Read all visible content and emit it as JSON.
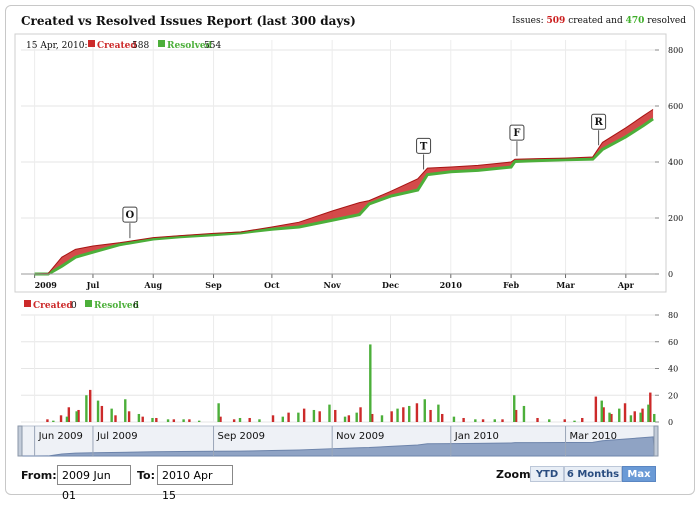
{
  "header": {
    "title": "Created vs Resolved Issues Report (last 300 days)",
    "summary_prefix": "Issues:",
    "created_total": "509",
    "summary_mid": "created and",
    "resolved_total": "470",
    "summary_suffix": "resolved"
  },
  "legend_top": {
    "date": "15 Apr, 2010:",
    "created_label": "Created",
    "created_value": "588",
    "resolved_label": "Resolved",
    "resolved_value": "554"
  },
  "legend_bottom": {
    "created_label": "Created",
    "created_value": "0",
    "resolved_label": "Resolved",
    "resolved_value": "6"
  },
  "colors": {
    "created": "#cc2a2a",
    "resolved": "#4caf3a"
  },
  "chart_data": [
    {
      "type": "area",
      "title": "",
      "x_ticks": [
        "2009",
        "Jul",
        "Aug",
        "Sep",
        "Oct",
        "Nov",
        "Dec",
        "2010",
        "Feb",
        "Mar",
        "Apr"
      ],
      "x_tick_dates": [
        "2009-06-01",
        "2009-07-01",
        "2009-08-01",
        "2009-09-01",
        "2009-10-01",
        "2009-11-01",
        "2009-12-01",
        "2010-01-01",
        "2010-02-01",
        "2010-03-01",
        "2010-04-01"
      ],
      "y_ticks": [
        0,
        200,
        400,
        600,
        800
      ],
      "ylim": [
        0,
        800
      ],
      "grid": true,
      "series": [
        {
          "name": "Created",
          "points": [
            [
              "2009-06-01",
              0
            ],
            [
              "2009-06-08",
              2
            ],
            [
              "2009-06-15",
              60
            ],
            [
              "2009-06-22",
              88
            ],
            [
              "2009-07-01",
              100
            ],
            [
              "2009-07-15",
              112
            ],
            [
              "2009-08-01",
              130
            ],
            [
              "2009-08-15",
              137
            ],
            [
              "2009-09-01",
              145
            ],
            [
              "2009-09-15",
              150
            ],
            [
              "2009-10-01",
              168
            ],
            [
              "2009-10-15",
              185
            ],
            [
              "2009-11-01",
              225
            ],
            [
              "2009-11-15",
              255
            ],
            [
              "2009-11-20",
              262
            ],
            [
              "2009-12-01",
              295
            ],
            [
              "2009-12-15",
              340
            ],
            [
              "2009-12-20",
              378
            ],
            [
              "2010-01-01",
              382
            ],
            [
              "2010-01-15",
              388
            ],
            [
              "2010-02-01",
              400
            ],
            [
              "2010-02-03",
              410
            ],
            [
              "2010-02-15",
              412
            ],
            [
              "2010-03-01",
              414
            ],
            [
              "2010-03-15",
              418
            ],
            [
              "2010-03-20",
              470
            ],
            [
              "2010-04-01",
              522
            ],
            [
              "2010-04-10",
              565
            ],
            [
              "2010-04-15",
              588
            ]
          ]
        },
        {
          "name": "Resolved",
          "points": [
            [
              "2009-06-01",
              0
            ],
            [
              "2009-06-08",
              0
            ],
            [
              "2009-06-15",
              28
            ],
            [
              "2009-06-22",
              60
            ],
            [
              "2009-07-01",
              78
            ],
            [
              "2009-07-15",
              105
            ],
            [
              "2009-08-01",
              125
            ],
            [
              "2009-08-15",
              133
            ],
            [
              "2009-09-01",
              140
            ],
            [
              "2009-09-15",
              147
            ],
            [
              "2009-10-01",
              160
            ],
            [
              "2009-10-15",
              168
            ],
            [
              "2009-11-01",
              192
            ],
            [
              "2009-11-15",
              212
            ],
            [
              "2009-11-20",
              250
            ],
            [
              "2009-12-01",
              278
            ],
            [
              "2009-12-15",
              300
            ],
            [
              "2009-12-20",
              355
            ],
            [
              "2010-01-01",
              365
            ],
            [
              "2010-01-15",
              370
            ],
            [
              "2010-02-01",
              382
            ],
            [
              "2010-02-03",
              402
            ],
            [
              "2010-02-15",
              405
            ],
            [
              "2010-03-01",
              408
            ],
            [
              "2010-03-15",
              410
            ],
            [
              "2010-03-20",
              445
            ],
            [
              "2010-04-01",
              490
            ],
            [
              "2010-04-10",
              530
            ],
            [
              "2010-04-15",
              554
            ]
          ]
        }
      ],
      "annotations": [
        {
          "label": "O",
          "date": "2009-07-20"
        },
        {
          "label": "T",
          "date": "2009-12-18"
        },
        {
          "label": "F",
          "date": "2010-02-04"
        },
        {
          "label": "R",
          "date": "2010-03-18"
        }
      ]
    },
    {
      "type": "bar",
      "title": "",
      "y_ticks": [
        0,
        20,
        40,
        60,
        80
      ],
      "ylim": [
        0,
        80
      ],
      "grid": true,
      "series": [
        {
          "name": "Created",
          "points": [
            [
              "2009-06-08",
              2
            ],
            [
              "2009-06-15",
              5
            ],
            [
              "2009-06-19",
              11
            ],
            [
              "2009-06-24",
              9
            ],
            [
              "2009-06-30",
              24
            ],
            [
              "2009-07-06",
              12
            ],
            [
              "2009-07-13",
              5
            ],
            [
              "2009-07-20",
              8
            ],
            [
              "2009-07-27",
              4
            ],
            [
              "2009-08-03",
              3
            ],
            [
              "2009-08-12",
              2
            ],
            [
              "2009-08-20",
              2
            ],
            [
              "2009-09-05",
              4
            ],
            [
              "2009-09-12",
              2
            ],
            [
              "2009-09-20",
              3
            ],
            [
              "2009-10-02",
              5
            ],
            [
              "2009-10-10",
              7
            ],
            [
              "2009-10-18",
              10
            ],
            [
              "2009-10-26",
              8
            ],
            [
              "2009-11-03",
              9
            ],
            [
              "2009-11-10",
              5
            ],
            [
              "2009-11-16",
              11
            ],
            [
              "2009-11-22",
              6
            ],
            [
              "2009-12-02",
              8
            ],
            [
              "2009-12-08",
              11
            ],
            [
              "2009-12-15",
              14
            ],
            [
              "2009-12-22",
              9
            ],
            [
              "2009-12-28",
              6
            ],
            [
              "2010-01-08",
              3
            ],
            [
              "2010-01-18",
              2
            ],
            [
              "2010-01-28",
              2
            ],
            [
              "2010-02-04",
              9
            ],
            [
              "2010-02-15",
              3
            ],
            [
              "2010-03-01",
              2
            ],
            [
              "2010-03-10",
              3
            ],
            [
              "2010-03-17",
              19
            ],
            [
              "2010-03-21",
              11
            ],
            [
              "2010-03-25",
              6
            ],
            [
              "2010-04-01",
              14
            ],
            [
              "2010-04-06",
              8
            ],
            [
              "2010-04-10",
              10
            ],
            [
              "2010-04-14",
              22
            ]
          ]
        },
        {
          "name": "Resolved",
          "points": [
            [
              "2009-06-10",
              1
            ],
            [
              "2009-06-17",
              4
            ],
            [
              "2009-06-22",
              8
            ],
            [
              "2009-06-27",
              20
            ],
            [
              "2009-07-03",
              16
            ],
            [
              "2009-07-10",
              10
            ],
            [
              "2009-07-17",
              17
            ],
            [
              "2009-07-24",
              6
            ],
            [
              "2009-07-31",
              3
            ],
            [
              "2009-08-08",
              2
            ],
            [
              "2009-08-16",
              2
            ],
            [
              "2009-08-24",
              1
            ],
            [
              "2009-09-03",
              14
            ],
            [
              "2009-09-14",
              3
            ],
            [
              "2009-09-24",
              2
            ],
            [
              "2009-10-06",
              4
            ],
            [
              "2009-10-14",
              7
            ],
            [
              "2009-10-22",
              9
            ],
            [
              "2009-10-30",
              13
            ],
            [
              "2009-11-07",
              4
            ],
            [
              "2009-11-13",
              7
            ],
            [
              "2009-11-20",
              58
            ],
            [
              "2009-11-26",
              5
            ],
            [
              "2009-12-04",
              10
            ],
            [
              "2009-12-10",
              12
            ],
            [
              "2009-12-18",
              17
            ],
            [
              "2009-12-25",
              13
            ],
            [
              "2010-01-02",
              4
            ],
            [
              "2010-01-13",
              2
            ],
            [
              "2010-01-23",
              2
            ],
            [
              "2010-02-02",
              20
            ],
            [
              "2010-02-07",
              12
            ],
            [
              "2010-02-20",
              2
            ],
            [
              "2010-03-05",
              1
            ],
            [
              "2010-03-19",
              16
            ],
            [
              "2010-03-23",
              7
            ],
            [
              "2010-03-28",
              10
            ],
            [
              "2010-04-03",
              5
            ],
            [
              "2010-04-08",
              7
            ],
            [
              "2010-04-12",
              13
            ],
            [
              "2010-04-15",
              6
            ]
          ]
        }
      ]
    }
  ],
  "navigator": {
    "labels": [
      "Jun 2009",
      "Jul 2009",
      "Sep 2009",
      "Nov 2009",
      "Jan 2010",
      "Mar 2010"
    ],
    "label_dates": [
      "2009-06-01",
      "2009-07-01",
      "2009-09-01",
      "2009-11-01",
      "2010-01-01",
      "2010-03-01"
    ]
  },
  "controls": {
    "from_label": "From:",
    "from_value": "2009 Jun 01",
    "to_label": "To:",
    "to_value": "2010 Apr 15",
    "zoom_label": "Zoom:",
    "zoom_options": [
      "YTD",
      "6 Months",
      "Max"
    ],
    "zoom_selected": "Max"
  }
}
